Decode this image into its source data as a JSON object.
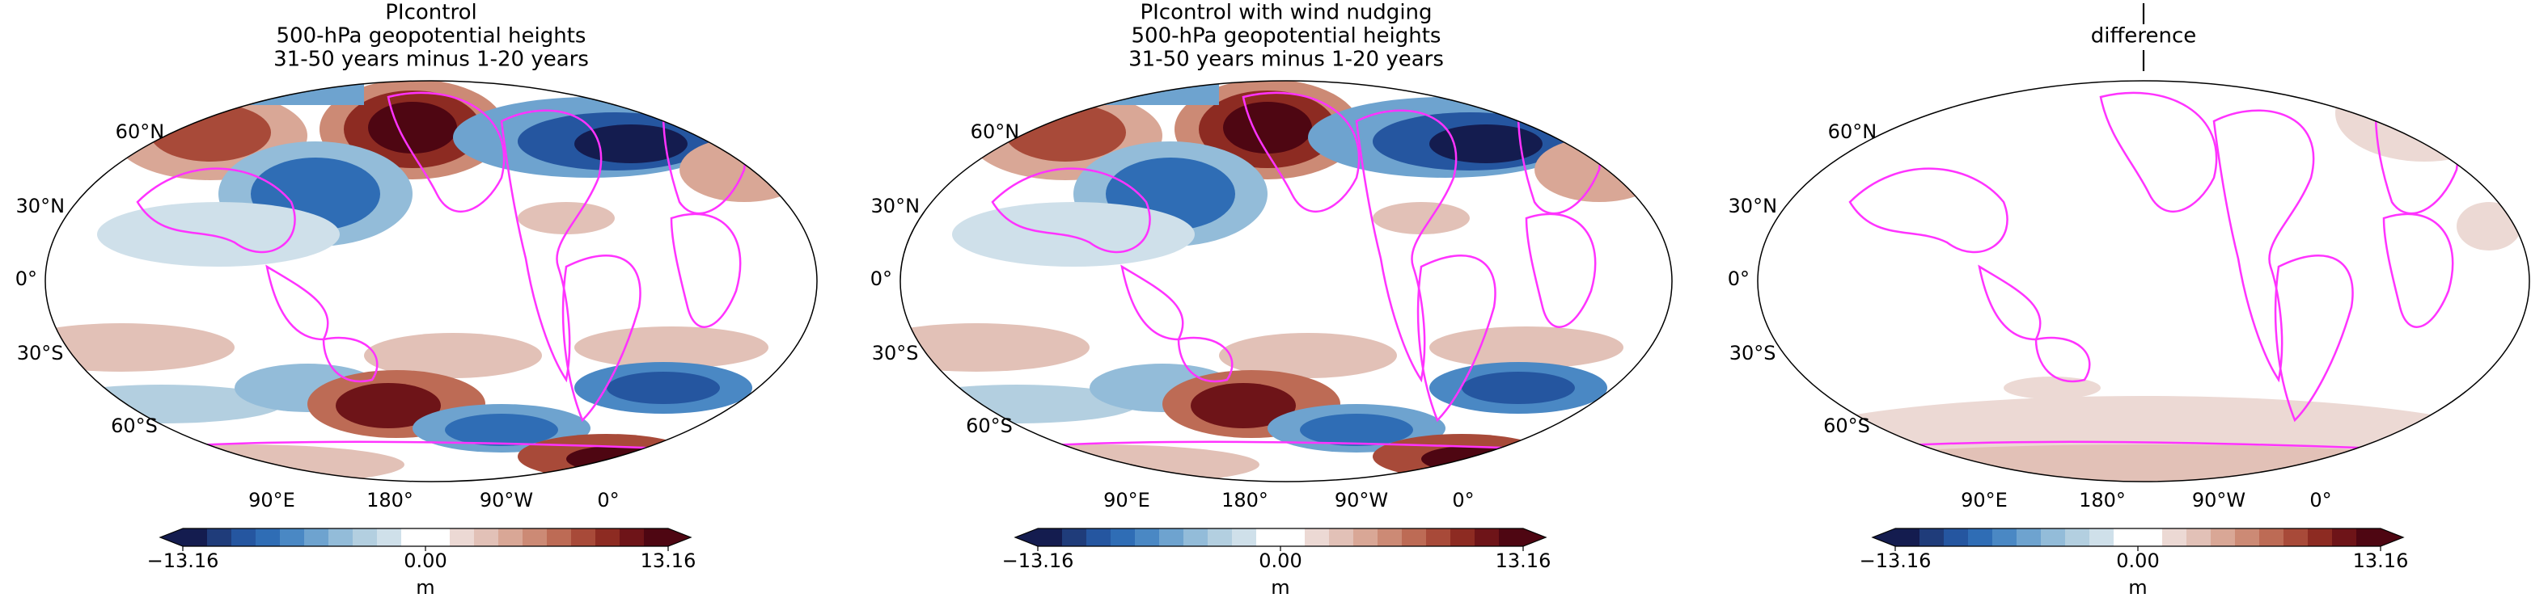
{
  "panels": [
    {
      "title": [
        "PIcontrol",
        "500-hPa geopotential heights",
        "31-50 years minus 1-20 years"
      ],
      "lat_labels": [
        "60°N",
        "30°N",
        "0°",
        "30°S",
        "60°S"
      ],
      "lon_labels": [
        "90°E",
        "180°",
        "90°W",
        "0°"
      ],
      "colorbar": {
        "lim": [
          -13.16,
          13.16
        ],
        "ticks": [
          {
            "value": -13.16,
            "label": "−13.16"
          },
          {
            "value": 0,
            "label": "0.00"
          },
          {
            "value": 13.16,
            "label": "13.16"
          }
        ],
        "label": "m"
      }
    },
    {
      "title": [
        "PIcontrol with wind nudging",
        "500-hPa geopotential heights",
        "31-50 years minus 1-20 years"
      ],
      "lat_labels": [
        "60°N",
        "30°N",
        "0°",
        "30°S",
        "60°S"
      ],
      "lon_labels": [
        "90°E",
        "180°",
        "90°W",
        "0°"
      ],
      "colorbar": {
        "lim": [
          -13.16,
          13.16
        ],
        "ticks": [
          {
            "value": -13.16,
            "label": "−13.16"
          },
          {
            "value": 0,
            "label": "0.00"
          },
          {
            "value": 13.16,
            "label": "13.16"
          }
        ],
        "label": "m"
      }
    },
    {
      "title": [
        "|",
        "difference",
        "|"
      ],
      "lat_labels": [
        "60°N",
        "30°N",
        "0°",
        "30°S",
        "60°S"
      ],
      "lon_labels": [
        "90°E",
        "180°",
        "90°W",
        "0°"
      ],
      "colorbar": {
        "lim": [
          -13.16,
          13.16
        ],
        "ticks": [
          {
            "value": -13.16,
            "label": "−13.16"
          },
          {
            "value": 0,
            "label": "0.00"
          },
          {
            "value": 13.16,
            "label": "13.16"
          }
        ],
        "label": "m"
      }
    }
  ],
  "colormap": [
    "#141c4f",
    "#1f3c7a",
    "#2556a0",
    "#2f6db5",
    "#4a88c4",
    "#6ea3cf",
    "#93bcd9",
    "#b3cfe0",
    "#cfe0ea",
    "#ffffff",
    "#ffffff",
    "#ecd9d4",
    "#e2c1b7",
    "#d9a796",
    "#cc8a75",
    "#bd6b55",
    "#a84a39",
    "#8d2b22",
    "#6e1418",
    "#4e0612"
  ],
  "coastline_color": "#ff33ff"
}
